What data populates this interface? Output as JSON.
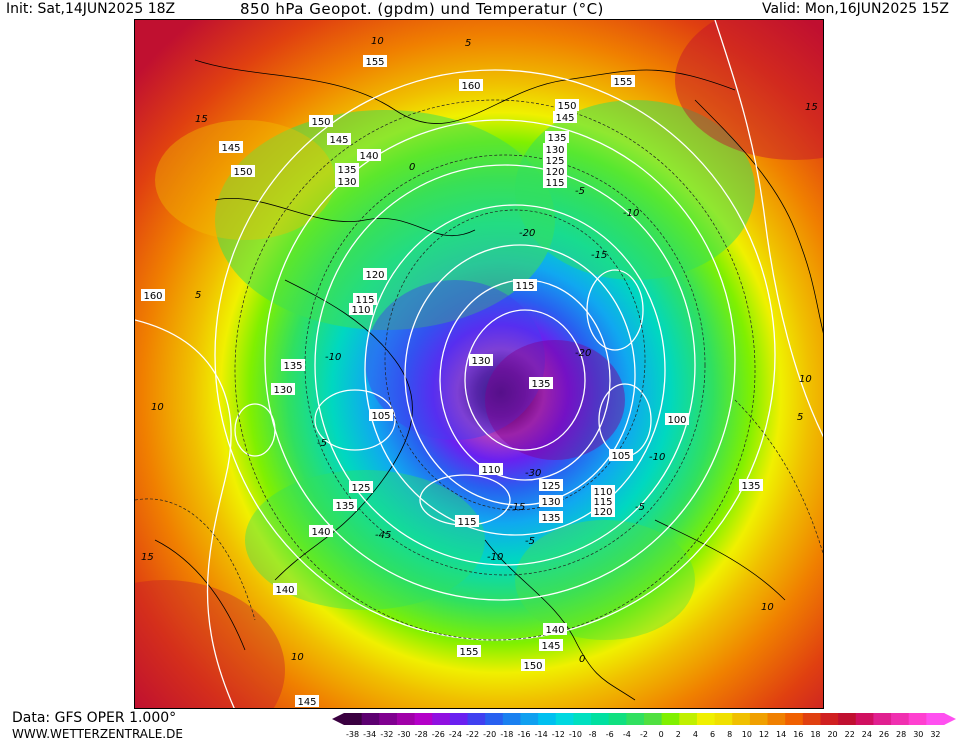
{
  "header": {
    "init": "Init: Sat,14JUN2025 18Z",
    "title": "850 hPa Geopot. (gpdm) und Temperatur (°C)",
    "valid": "Valid: Mon,16JUN2025 15Z"
  },
  "footer": {
    "data_source": "Data: GFS OPER 1.000°",
    "website": "WWW.WETTERZENTRALE.DE"
  },
  "colorbar": {
    "ticks": [
      "-38",
      "-34",
      "-32",
      "-30",
      "-28",
      "-26",
      "-24",
      "-22",
      "-20",
      "-18",
      "-16",
      "-14",
      "-12",
      "-10",
      "-8",
      "-6",
      "-4",
      "-2",
      "0",
      "2",
      "4",
      "6",
      "8",
      "10",
      "12",
      "14",
      "16",
      "18",
      "20",
      "22",
      "24",
      "26",
      "28",
      "30",
      "32"
    ],
    "colors": [
      "#3a0040",
      "#5c0070",
      "#800090",
      "#a000a8",
      "#b400c8",
      "#9010e0",
      "#6a20f0",
      "#4040f0",
      "#2860f0",
      "#1a80f0",
      "#10a0f0",
      "#00c0f0",
      "#00d8e0",
      "#00e0c0",
      "#00e0a0",
      "#10e080",
      "#30e060",
      "#50e040",
      "#80f000",
      "#c0f000",
      "#f0f000",
      "#f0e000",
      "#f0c000",
      "#f0a000",
      "#f08000",
      "#f06000",
      "#e04010",
      "#d02020",
      "#c01030",
      "#d01060",
      "#e02090",
      "#f030b0",
      "#ff40d0",
      "#ff50f0"
    ]
  },
  "map": {
    "geopotential_labels": [
      "160",
      "155",
      "150",
      "145",
      "140",
      "135",
      "130",
      "125",
      "120",
      "115",
      "110",
      "105",
      "100"
    ],
    "temperature_labels": [
      "-45",
      "-30",
      "-20",
      "-15",
      "-10",
      "-5",
      "0",
      "5",
      "10",
      "15"
    ]
  }
}
